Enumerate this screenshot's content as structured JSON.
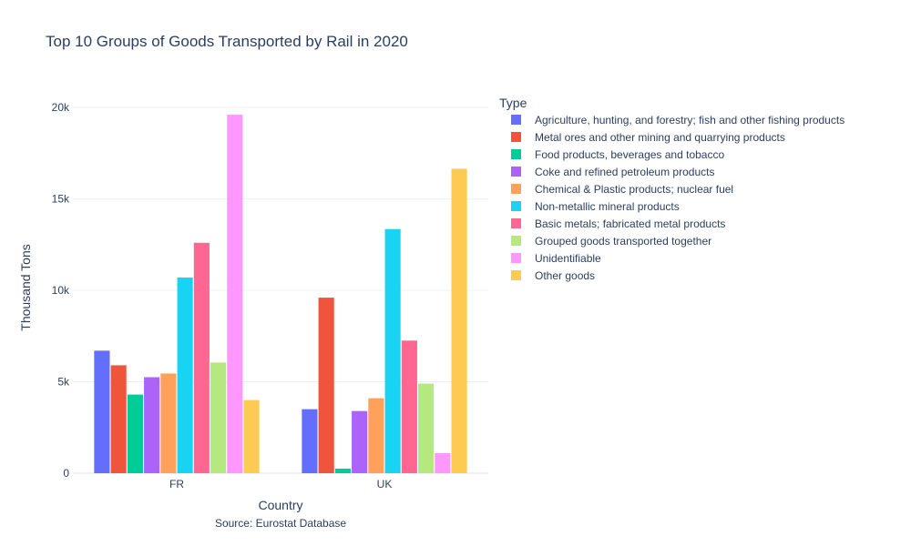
{
  "chart_data": {
    "type": "bar",
    "title": "Top 10 Groups of Goods Transported by Rail in 2020",
    "xlabel": "Country",
    "ylabel": "Thousand Tons",
    "source": "Source: Eurostat Database",
    "legend_title": "Type",
    "legend_position": "right",
    "grid": true,
    "ylim": [
      0,
      20900
    ],
    "yticks": [
      0,
      5000,
      10000,
      15000,
      20000
    ],
    "ytick_labels": [
      "0",
      "5k",
      "10k",
      "15k",
      "20k"
    ],
    "categories": [
      "FR",
      "UK"
    ],
    "series": [
      {
        "name": "Agriculture, hunting, and forestry; fish and other fishing products",
        "color": "#636efa",
        "values": [
          6700,
          3500
        ]
      },
      {
        "name": "Metal ores and other mining and quarrying products",
        "color": "#ef553b",
        "values": [
          5900,
          9600
        ]
      },
      {
        "name": "Food products, beverages and tobacco",
        "color": "#00cc96",
        "values": [
          4300,
          250
        ]
      },
      {
        "name": "Coke and refined petroleum products",
        "color": "#ab63fa",
        "values": [
          5250,
          3400
        ]
      },
      {
        "name": "Chemical & Plastic products; nuclear fuel",
        "color": "#ffa15a",
        "values": [
          5450,
          4100
        ]
      },
      {
        "name": "Non-metallic mineral products",
        "color": "#19d3f3",
        "values": [
          10700,
          13350
        ]
      },
      {
        "name": "Basic metals; fabricated metal products",
        "color": "#ff6692",
        "values": [
          12600,
          7250
        ]
      },
      {
        "name": "Grouped goods transported together",
        "color": "#b6e880",
        "values": [
          6050,
          4900
        ]
      },
      {
        "name": "Unidentifiable",
        "color": "#ff97ff",
        "values": [
          19600,
          1100
        ]
      },
      {
        "name": "Other goods",
        "color": "#fecb52",
        "values": [
          4000,
          16650
        ]
      }
    ]
  }
}
